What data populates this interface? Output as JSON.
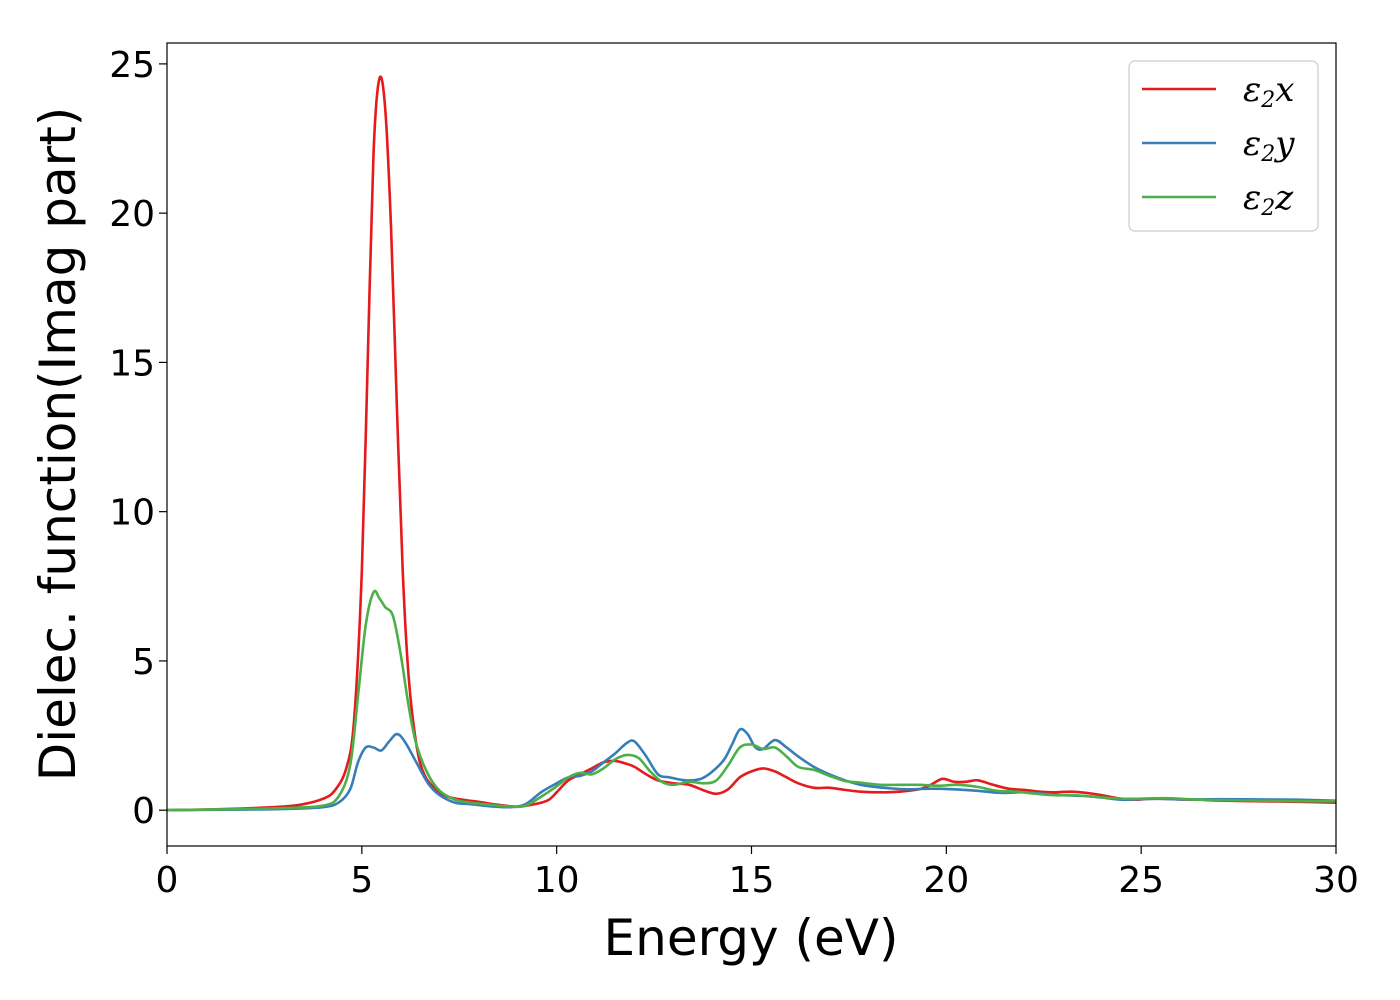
{
  "chart_data": {
    "type": "line",
    "xlabel": "Energy (eV)",
    "ylabel": "Dielec. function(Imag part)",
    "xlim": [
      0,
      30
    ],
    "ylim": [
      -1.2,
      25.7
    ],
    "xticks": [
      0,
      5,
      10,
      15,
      20,
      25,
      30
    ],
    "yticks": [
      0,
      5,
      10,
      15,
      20,
      25
    ],
    "grid": false,
    "legend_position": "top-right",
    "series": [
      {
        "name": "ε2x",
        "legend": {
          "base": "ε",
          "sub": "2",
          "var": "x"
        },
        "color": "#e41a1c",
        "points": [
          [
            0,
            0
          ],
          [
            1,
            0.02
          ],
          [
            2,
            0.06
          ],
          [
            3,
            0.12
          ],
          [
            3.5,
            0.2
          ],
          [
            4,
            0.38
          ],
          [
            4.3,
            0.65
          ],
          [
            4.6,
            1.4
          ],
          [
            4.8,
            3.0
          ],
          [
            5.0,
            8.0
          ],
          [
            5.15,
            15.0
          ],
          [
            5.3,
            22.0
          ],
          [
            5.45,
            24.5
          ],
          [
            5.6,
            23.5
          ],
          [
            5.75,
            19.5
          ],
          [
            5.9,
            13.5
          ],
          [
            6.05,
            8.0
          ],
          [
            6.2,
            4.5
          ],
          [
            6.4,
            2.2
          ],
          [
            6.6,
            1.2
          ],
          [
            6.9,
            0.7
          ],
          [
            7.2,
            0.45
          ],
          [
            7.6,
            0.35
          ],
          [
            8,
            0.28
          ],
          [
            8.5,
            0.18
          ],
          [
            9,
            0.12
          ],
          [
            9.5,
            0.22
          ],
          [
            9.8,
            0.35
          ],
          [
            10.0,
            0.6
          ],
          [
            10.3,
            1.0
          ],
          [
            10.6,
            1.2
          ],
          [
            10.9,
            1.4
          ],
          [
            11.2,
            1.6
          ],
          [
            11.5,
            1.65
          ],
          [
            11.8,
            1.55
          ],
          [
            12.0,
            1.45
          ],
          [
            12.3,
            1.2
          ],
          [
            12.6,
            1.0
          ],
          [
            13.0,
            0.9
          ],
          [
            13.4,
            0.85
          ],
          [
            13.8,
            0.65
          ],
          [
            14.1,
            0.55
          ],
          [
            14.4,
            0.7
          ],
          [
            14.7,
            1.1
          ],
          [
            15.0,
            1.3
          ],
          [
            15.3,
            1.4
          ],
          [
            15.6,
            1.3
          ],
          [
            15.9,
            1.1
          ],
          [
            16.2,
            0.9
          ],
          [
            16.6,
            0.75
          ],
          [
            17.0,
            0.75
          ],
          [
            17.4,
            0.68
          ],
          [
            17.8,
            0.62
          ],
          [
            18.3,
            0.6
          ],
          [
            18.8,
            0.62
          ],
          [
            19.3,
            0.7
          ],
          [
            19.6,
            0.85
          ],
          [
            19.9,
            1.05
          ],
          [
            20.2,
            0.95
          ],
          [
            20.5,
            0.95
          ],
          [
            20.8,
            1.0
          ],
          [
            21.2,
            0.85
          ],
          [
            21.6,
            0.72
          ],
          [
            22.0,
            0.68
          ],
          [
            22.4,
            0.62
          ],
          [
            22.8,
            0.6
          ],
          [
            23.2,
            0.62
          ],
          [
            23.6,
            0.58
          ],
          [
            24.0,
            0.5
          ],
          [
            24.4,
            0.4
          ],
          [
            24.8,
            0.35
          ],
          [
            25.2,
            0.38
          ],
          [
            25.6,
            0.38
          ],
          [
            26.0,
            0.36
          ],
          [
            26.5,
            0.35
          ],
          [
            27,
            0.32
          ],
          [
            28,
            0.3
          ],
          [
            29,
            0.28
          ],
          [
            30,
            0.25
          ]
        ]
      },
      {
        "name": "ε2y",
        "legend": {
          "base": "ε",
          "sub": "2",
          "var": "y"
        },
        "color": "#377eb8",
        "points": [
          [
            0,
            0
          ],
          [
            1,
            0.01
          ],
          [
            2,
            0.02
          ],
          [
            3,
            0.04
          ],
          [
            4,
            0.1
          ],
          [
            4.4,
            0.25
          ],
          [
            4.7,
            0.7
          ],
          [
            4.9,
            1.6
          ],
          [
            5.1,
            2.1
          ],
          [
            5.3,
            2.1
          ],
          [
            5.5,
            2.0
          ],
          [
            5.7,
            2.3
          ],
          [
            5.9,
            2.55
          ],
          [
            6.1,
            2.3
          ],
          [
            6.4,
            1.6
          ],
          [
            6.7,
            0.9
          ],
          [
            7.0,
            0.5
          ],
          [
            7.4,
            0.25
          ],
          [
            7.8,
            0.2
          ],
          [
            8.3,
            0.13
          ],
          [
            8.8,
            0.1
          ],
          [
            9.2,
            0.2
          ],
          [
            9.6,
            0.6
          ],
          [
            10.0,
            0.9
          ],
          [
            10.3,
            1.1
          ],
          [
            10.6,
            1.15
          ],
          [
            10.9,
            1.3
          ],
          [
            11.2,
            1.6
          ],
          [
            11.5,
            1.9
          ],
          [
            11.8,
            2.25
          ],
          [
            12.0,
            2.3
          ],
          [
            12.3,
            1.8
          ],
          [
            12.6,
            1.2
          ],
          [
            12.9,
            1.1
          ],
          [
            13.3,
            1.0
          ],
          [
            13.7,
            1.05
          ],
          [
            14.0,
            1.3
          ],
          [
            14.3,
            1.7
          ],
          [
            14.5,
            2.2
          ],
          [
            14.7,
            2.7
          ],
          [
            14.9,
            2.55
          ],
          [
            15.1,
            2.1
          ],
          [
            15.3,
            2.05
          ],
          [
            15.6,
            2.35
          ],
          [
            15.9,
            2.1
          ],
          [
            16.2,
            1.8
          ],
          [
            16.6,
            1.45
          ],
          [
            17.0,
            1.2
          ],
          [
            17.4,
            1.0
          ],
          [
            17.8,
            0.85
          ],
          [
            18.4,
            0.75
          ],
          [
            19,
            0.7
          ],
          [
            19.6,
            0.72
          ],
          [
            20.2,
            0.7
          ],
          [
            20.8,
            0.65
          ],
          [
            21.4,
            0.58
          ],
          [
            22.0,
            0.6
          ],
          [
            22.5,
            0.55
          ],
          [
            23,
            0.5
          ],
          [
            23.5,
            0.48
          ],
          [
            24,
            0.42
          ],
          [
            24.5,
            0.35
          ],
          [
            25,
            0.37
          ],
          [
            25.5,
            0.38
          ],
          [
            26,
            0.36
          ],
          [
            26.5,
            0.36
          ],
          [
            27,
            0.37
          ],
          [
            28,
            0.36
          ],
          [
            29,
            0.35
          ],
          [
            30,
            0.32
          ]
        ]
      },
      {
        "name": "ε2z",
        "legend": {
          "base": "ε",
          "sub": "2",
          "var": "z"
        },
        "color": "#4daf4a",
        "points": [
          [
            0,
            0
          ],
          [
            1,
            0.02
          ],
          [
            2,
            0.04
          ],
          [
            3,
            0.07
          ],
          [
            4,
            0.15
          ],
          [
            4.4,
            0.45
          ],
          [
            4.7,
            1.5
          ],
          [
            4.9,
            3.8
          ],
          [
            5.1,
            6.2
          ],
          [
            5.3,
            7.3
          ],
          [
            5.45,
            7.1
          ],
          [
            5.6,
            6.8
          ],
          [
            5.8,
            6.5
          ],
          [
            6.0,
            5.2
          ],
          [
            6.2,
            3.5
          ],
          [
            6.4,
            2.2
          ],
          [
            6.7,
            1.2
          ],
          [
            7.0,
            0.65
          ],
          [
            7.4,
            0.35
          ],
          [
            7.8,
            0.25
          ],
          [
            8.3,
            0.18
          ],
          [
            8.8,
            0.12
          ],
          [
            9.2,
            0.15
          ],
          [
            9.6,
            0.45
          ],
          [
            10.0,
            0.8
          ],
          [
            10.3,
            1.1
          ],
          [
            10.6,
            1.25
          ],
          [
            10.9,
            1.2
          ],
          [
            11.2,
            1.4
          ],
          [
            11.5,
            1.7
          ],
          [
            11.8,
            1.85
          ],
          [
            12.1,
            1.75
          ],
          [
            12.4,
            1.3
          ],
          [
            12.7,
            0.95
          ],
          [
            13.0,
            0.85
          ],
          [
            13.4,
            0.95
          ],
          [
            13.8,
            0.9
          ],
          [
            14.1,
            1.0
          ],
          [
            14.4,
            1.5
          ],
          [
            14.7,
            2.1
          ],
          [
            15.0,
            2.2
          ],
          [
            15.3,
            2.05
          ],
          [
            15.6,
            2.1
          ],
          [
            15.9,
            1.8
          ],
          [
            16.2,
            1.45
          ],
          [
            16.6,
            1.35
          ],
          [
            17.0,
            1.15
          ],
          [
            17.4,
            0.98
          ],
          [
            17.8,
            0.92
          ],
          [
            18.3,
            0.85
          ],
          [
            18.8,
            0.85
          ],
          [
            19.3,
            0.85
          ],
          [
            19.8,
            0.82
          ],
          [
            20.3,
            0.85
          ],
          [
            20.8,
            0.78
          ],
          [
            21.3,
            0.65
          ],
          [
            21.8,
            0.62
          ],
          [
            22.3,
            0.55
          ],
          [
            22.8,
            0.5
          ],
          [
            23.3,
            0.5
          ],
          [
            23.8,
            0.45
          ],
          [
            24.3,
            0.4
          ],
          [
            24.8,
            0.38
          ],
          [
            25.3,
            0.4
          ],
          [
            25.8,
            0.4
          ],
          [
            26.3,
            0.36
          ],
          [
            27,
            0.34
          ],
          [
            28,
            0.32
          ],
          [
            29,
            0.3
          ],
          [
            30,
            0.3
          ]
        ]
      }
    ]
  }
}
